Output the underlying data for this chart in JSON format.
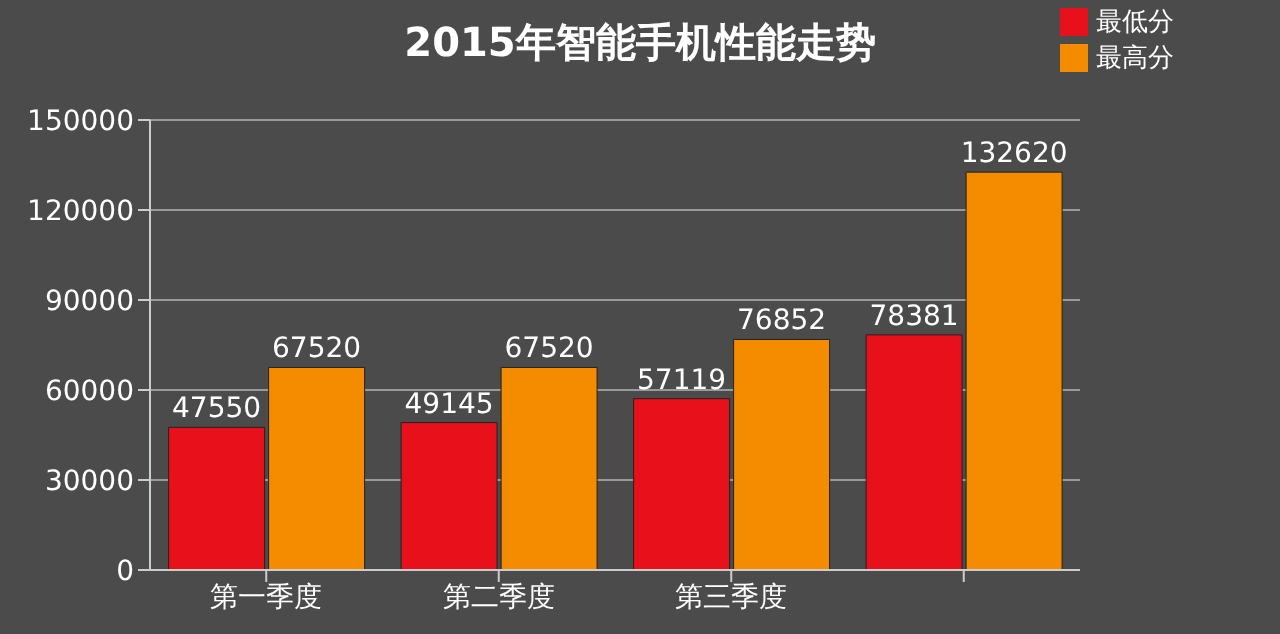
{
  "chart_data": {
    "type": "bar",
    "title": "2015年智能手机性能走势",
    "categories": [
      "第一季度",
      "第二季度",
      "第三季度",
      null
    ],
    "series": [
      {
        "name": "最低分",
        "color": "#e8101a",
        "values": [
          47550,
          49145,
          57119,
          78381
        ]
      },
      {
        "name": "最高分",
        "color": "#f58c00",
        "values": [
          67520,
          67520,
          76852,
          132620
        ]
      }
    ],
    "ylim": [
      0,
      150000
    ],
    "yticks": [
      0,
      30000,
      60000,
      90000,
      120000,
      150000
    ],
    "grid": "y",
    "legend": "top right",
    "data_labels": true
  }
}
